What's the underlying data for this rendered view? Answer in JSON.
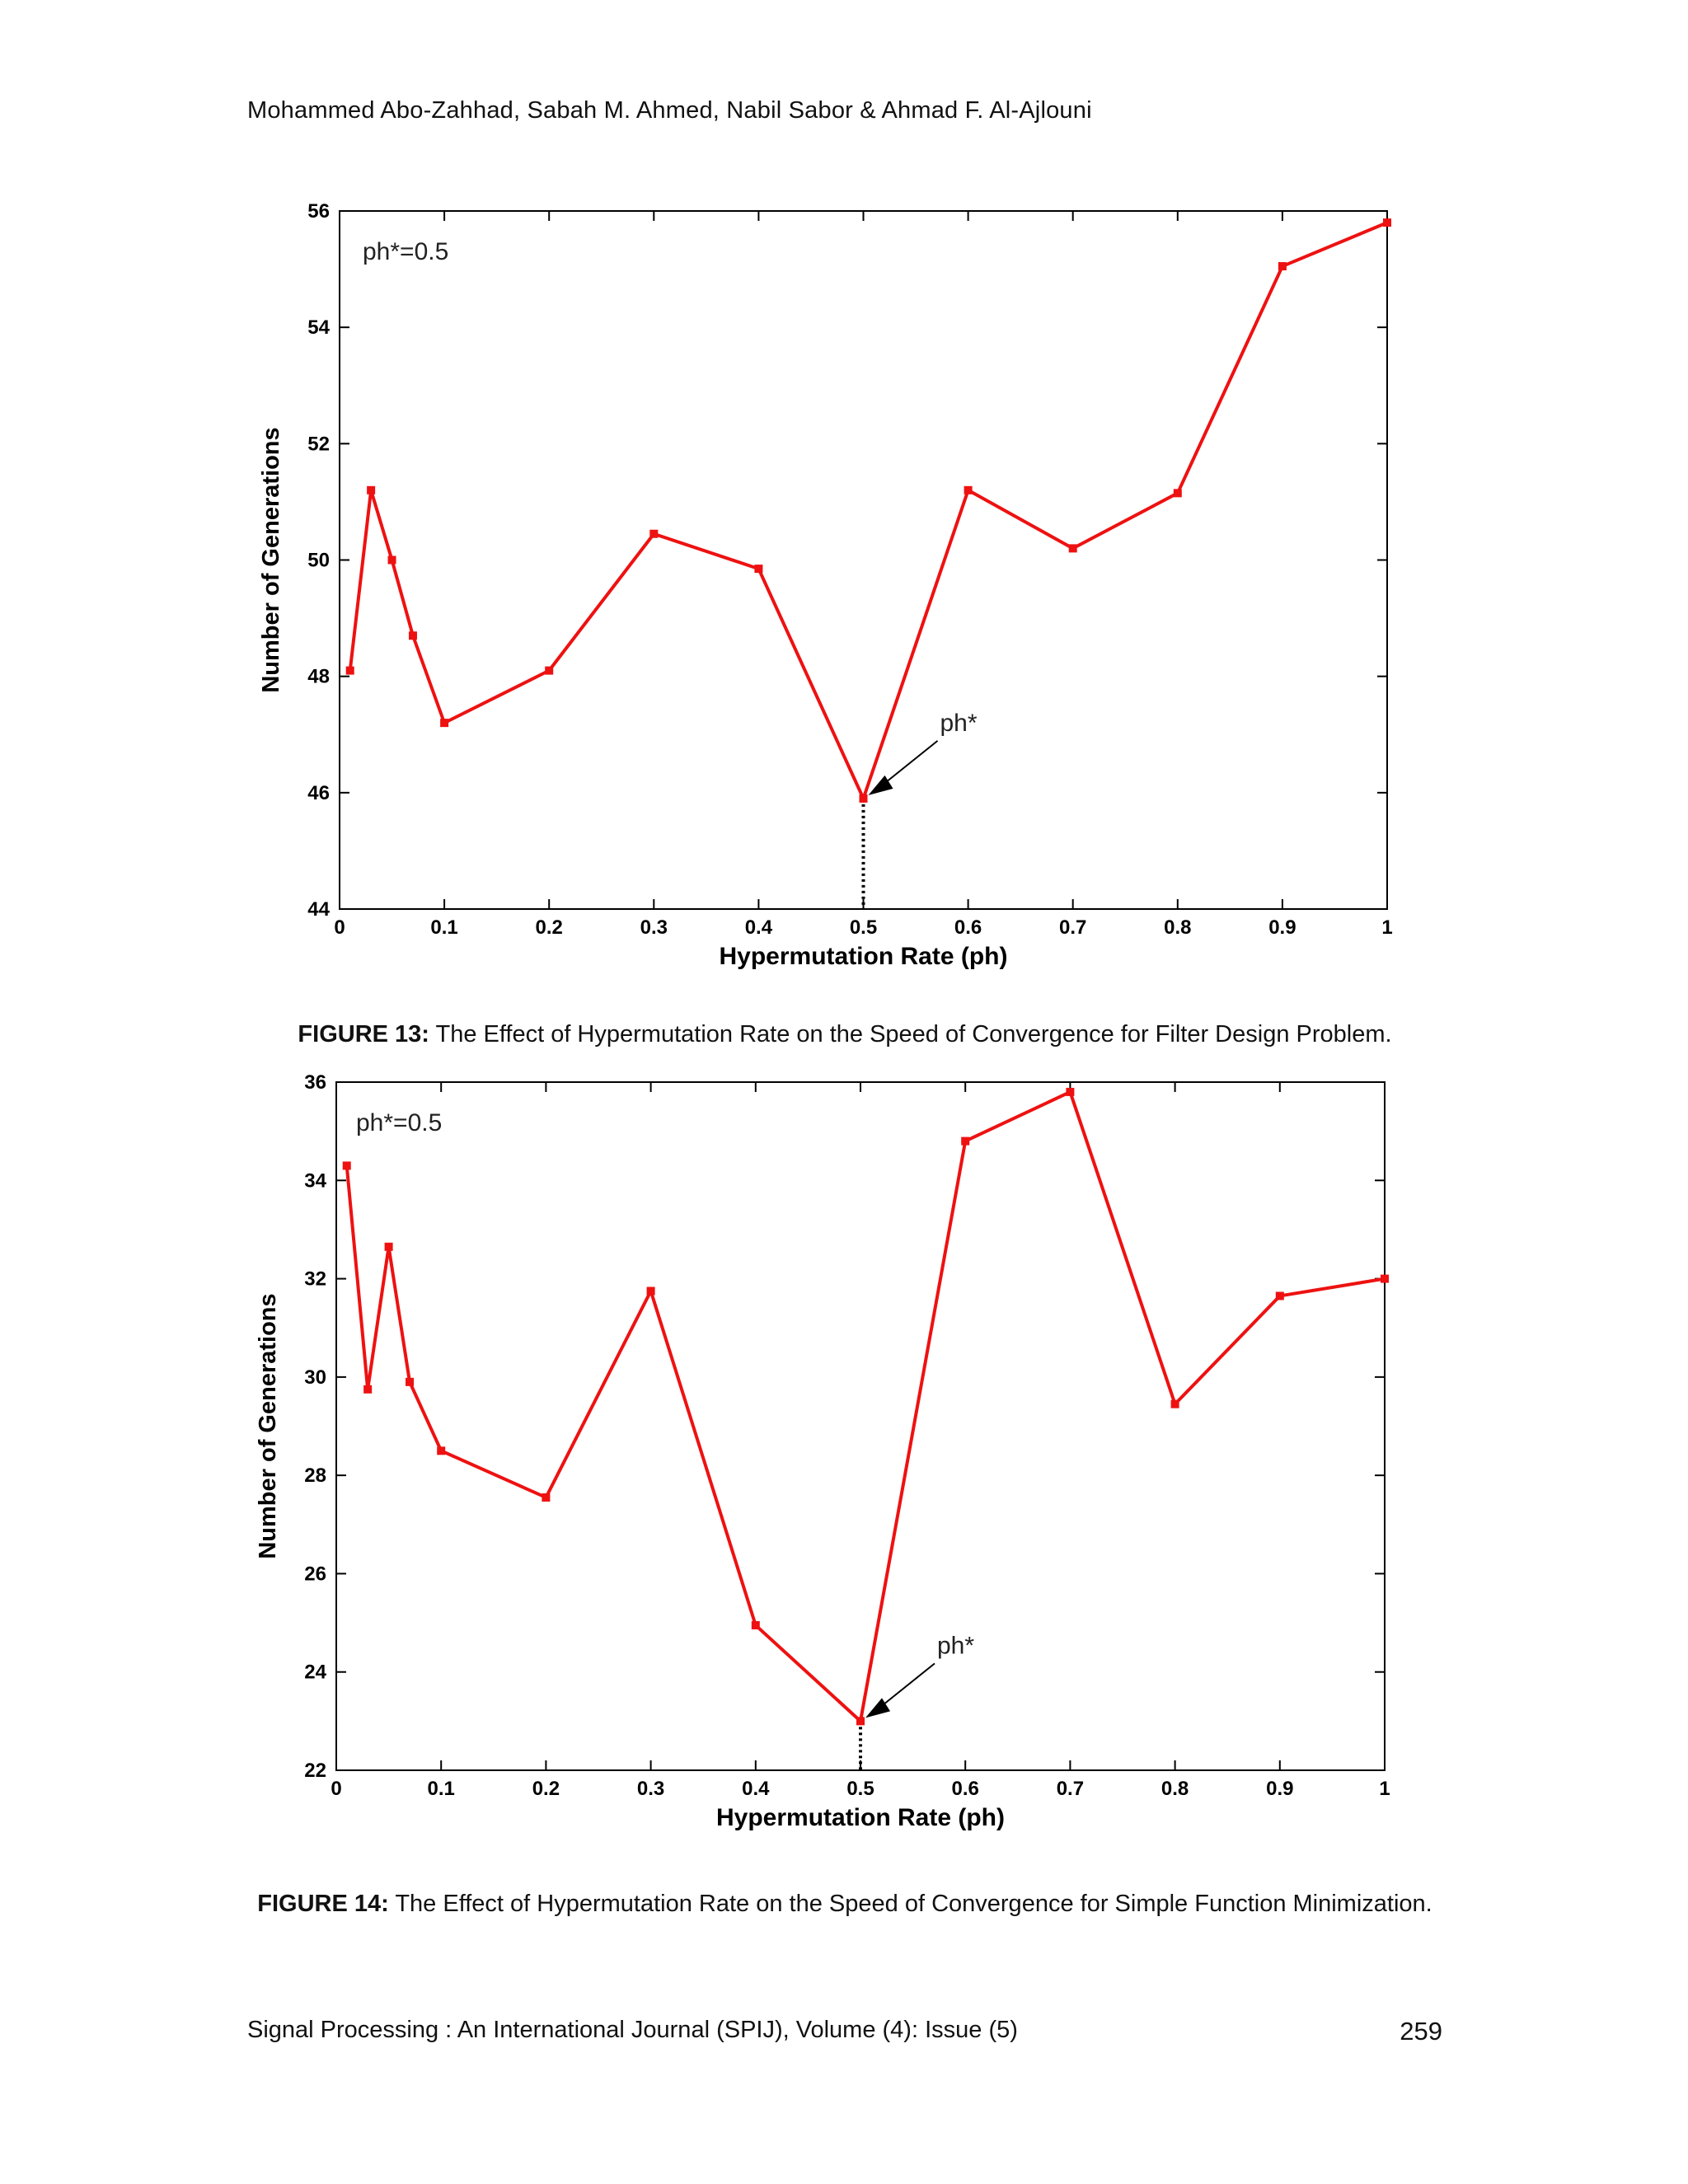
{
  "header": {
    "authors": "Mohammed Abo-Zahhad, Sabah M. Ahmed, Nabil Sabor & Ahmad F. Al-Ajlouni"
  },
  "figures": [
    {
      "caption_label": "FIGURE 13:",
      "caption_text": " The Effect of Hypermutation Rate on the Speed of Convergence for Filter Design Problem."
    },
    {
      "caption_label": "FIGURE 14:",
      "caption_text": " The Effect of Hypermutation Rate on the Speed of Convergence for Simple Function Minimization."
    }
  ],
  "footer": {
    "journal": "Signal Processing : An International Journal (SPIJ), Volume (4): Issue (5)",
    "page_number": "259"
  },
  "colors": {
    "series": "#ee1111",
    "axes": "#000000",
    "text": "#111111"
  },
  "chart_data": [
    {
      "type": "line",
      "title": "",
      "xlabel": "Hypermutation Rate (ph)",
      "ylabel": "Number of Generations",
      "xlim": [
        0,
        1
      ],
      "ylim": [
        44,
        56
      ],
      "xticks": [
        "0",
        "0.1",
        "0.2",
        "0.3",
        "0.4",
        "0.5",
        "0.6",
        "0.7",
        "0.8",
        "0.9",
        "1"
      ],
      "yticks": [
        "44",
        "46",
        "48",
        "50",
        "52",
        "54",
        "56"
      ],
      "grid": false,
      "annotation_text": "ph*=0.5",
      "arrow_label": "ph*",
      "optimum_x": 0.5,
      "x": [
        0.01,
        0.03,
        0.05,
        0.07,
        0.1,
        0.2,
        0.3,
        0.4,
        0.5,
        0.6,
        0.7,
        0.8,
        0.9,
        1.0
      ],
      "y": [
        48.1,
        51.2,
        50.0,
        48.7,
        47.2,
        48.1,
        50.45,
        49.85,
        45.9,
        51.2,
        50.2,
        51.15,
        55.05,
        55.8
      ]
    },
    {
      "type": "line",
      "title": "",
      "xlabel": "Hypermutation Rate (ph)",
      "ylabel": "Number of Generations",
      "xlim": [
        0,
        1
      ],
      "ylim": [
        22,
        36
      ],
      "xticks": [
        "0",
        "0.1",
        "0.2",
        "0.3",
        "0.4",
        "0.5",
        "0.6",
        "0.7",
        "0.8",
        "0.9",
        "1"
      ],
      "yticks": [
        "22",
        "24",
        "26",
        "28",
        "30",
        "32",
        "34",
        "36"
      ],
      "grid": false,
      "annotation_text": "ph*=0.5",
      "arrow_label": "ph*",
      "optimum_x": 0.5,
      "x": [
        0.01,
        0.03,
        0.05,
        0.07,
        0.1,
        0.2,
        0.3,
        0.4,
        0.5,
        0.6,
        0.7,
        0.8,
        0.9,
        1.0
      ],
      "y": [
        34.3,
        29.75,
        32.65,
        29.9,
        28.5,
        27.55,
        31.75,
        24.95,
        23.0,
        34.8,
        35.8,
        29.45,
        31.65,
        32.0
      ]
    }
  ]
}
